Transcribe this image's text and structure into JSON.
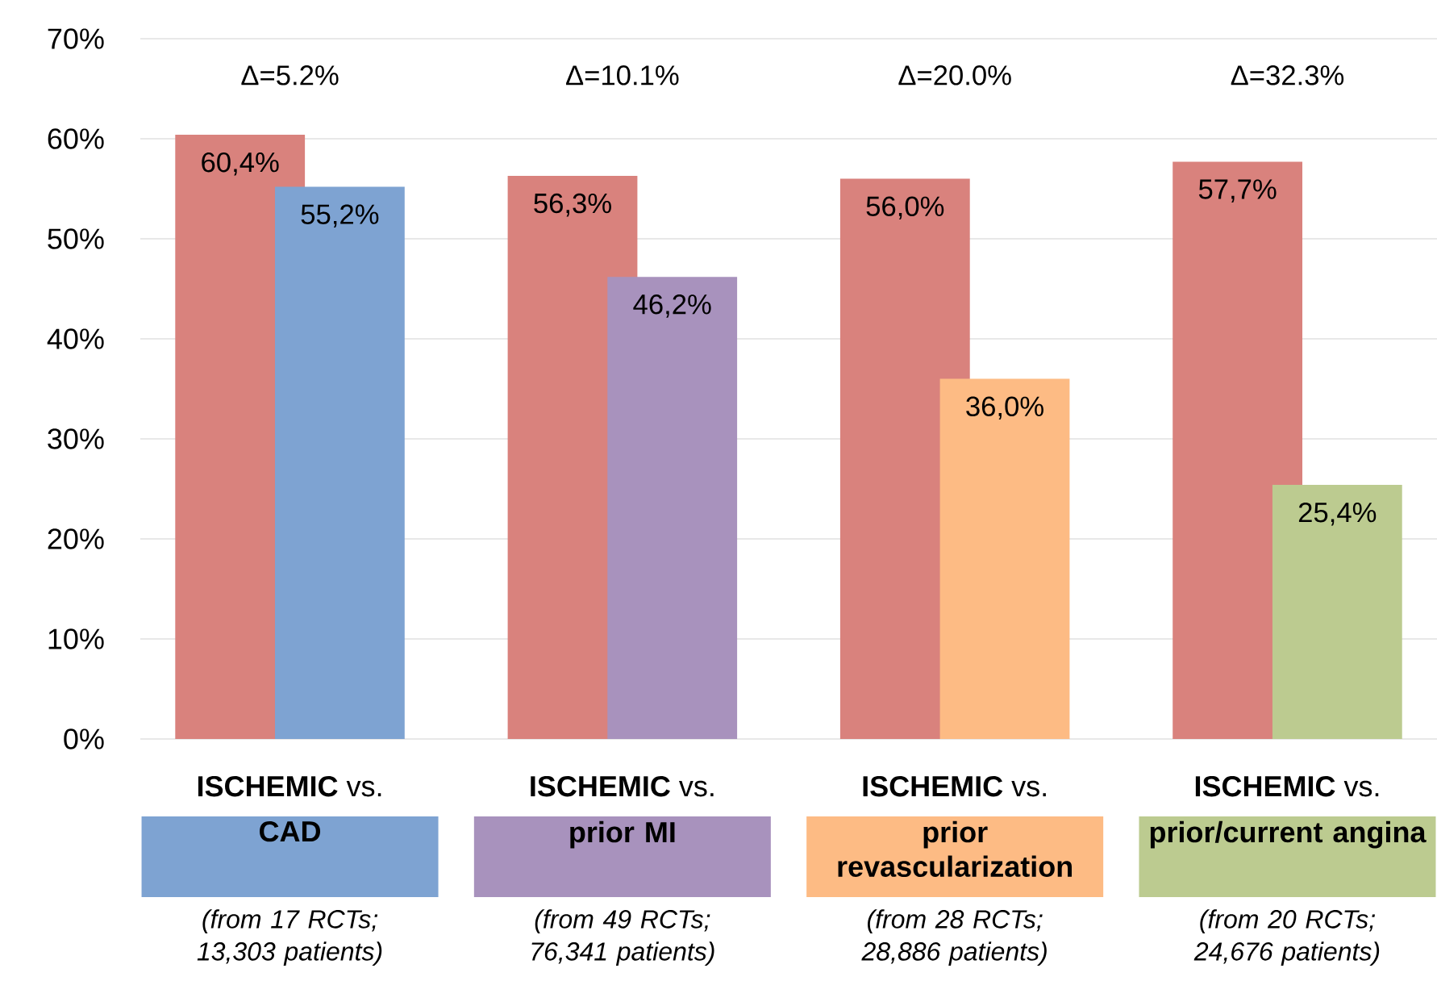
{
  "chart_data": {
    "type": "bar",
    "categories": [
      "CAD",
      "prior MI",
      "prior revascularization",
      "prior/current angina"
    ],
    "series": [
      {
        "color": "#d9827d",
        "values": [
          60.4,
          56.3,
          56.0,
          57.7
        ],
        "value_labels": [
          "60,4%",
          "56,3%",
          "56,0%",
          "57,7%"
        ]
      },
      {
        "colors": [
          "#7ea3d2",
          "#a892bd",
          "#fdbb84",
          "#bccb90"
        ],
        "values": [
          55.2,
          46.2,
          36.0,
          25.4
        ],
        "value_labels": [
          "55,2%",
          "46,2%",
          "36,0%",
          "25,4%"
        ]
      }
    ],
    "ylim": [
      0,
      70
    ],
    "yticks": [
      {
        "value": 0,
        "label": "0%"
      },
      {
        "value": 10,
        "label": "10%"
      },
      {
        "value": 20,
        "label": "20%"
      },
      {
        "value": 30,
        "label": "30%"
      },
      {
        "value": 40,
        "label": "40%"
      },
      {
        "value": 50,
        "label": "50%"
      },
      {
        "value": 60,
        "label": "60%"
      },
      {
        "value": 70,
        "label": "70%"
      }
    ],
    "grid": "y",
    "annotations": [
      "Δ=5.2%",
      "**ISCHEMIC** vs.",
      "(from 17 RCTs; 13,303 patients)",
      "Δ=10.1%",
      "**ISCHEMIC** vs.",
      "(from 49 RCTs; 76,341 patients)",
      "Δ=20.0%",
      "**ISCHEMIC** vs.",
      "(from 28 RCTs; 28,886 patients)",
      "Δ=32.3%",
      "**ISCHEMIC** vs.",
      "(from 20 RCTs; 24,676 patients)"
    ]
  }
}
